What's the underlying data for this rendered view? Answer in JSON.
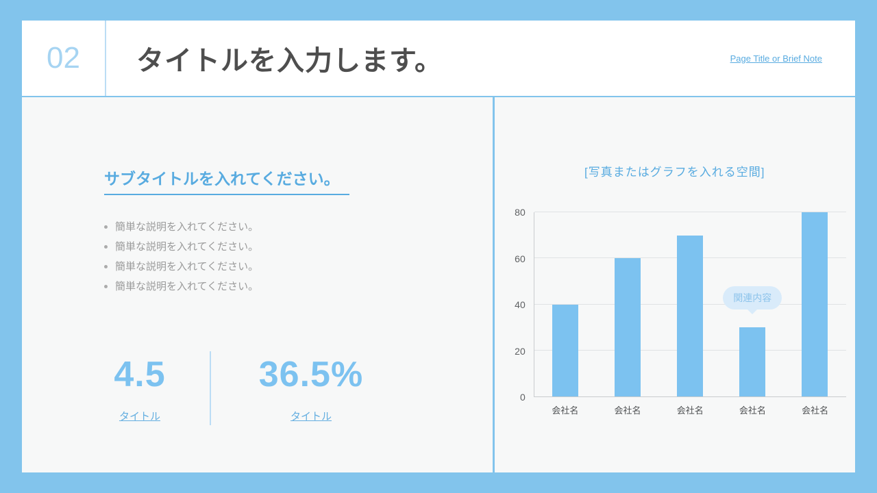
{
  "theme": {
    "frame_blue": "#82C4EC",
    "accent_blue": "#58ABE0",
    "number_blue": "#A6D4F2",
    "stat_blue": "#7CC2F0",
    "title_color": "#4E4E4E",
    "body_gray": "#9A9A9A",
    "panel_bg": "#F7F8F8"
  },
  "header": {
    "number": "02",
    "title": "タイトルを入力します。",
    "note": "Page Title or Brief Note"
  },
  "left_panel": {
    "subtitle": "サブタイトルを入れてください。",
    "bullets": [
      "簡単な説明を入れてください。",
      "簡単な説明を入れてください。",
      "簡単な説明を入れてください。",
      "簡単な説明を入れてください。"
    ],
    "stats": [
      {
        "value": "4.5",
        "label": "タイトル"
      },
      {
        "value": "36.5%",
        "label": "タイトル"
      }
    ]
  },
  "right_panel": {
    "caption": "[写真またはグラフを入れる空間]"
  },
  "chart_data": {
    "type": "bar",
    "categories": [
      "会社名",
      "会社名",
      "会社名",
      "会社名",
      "会社名"
    ],
    "values": [
      40,
      60,
      70,
      30,
      80
    ],
    "title": "",
    "xlabel": "",
    "ylabel": "",
    "ylim": [
      0,
      80
    ],
    "yticks": [
      0,
      20,
      40,
      60,
      80
    ],
    "grid": true,
    "legend": false,
    "bar_color": "#7CC2F0",
    "annotation": {
      "text": "関連内容",
      "target_index": 3
    }
  }
}
